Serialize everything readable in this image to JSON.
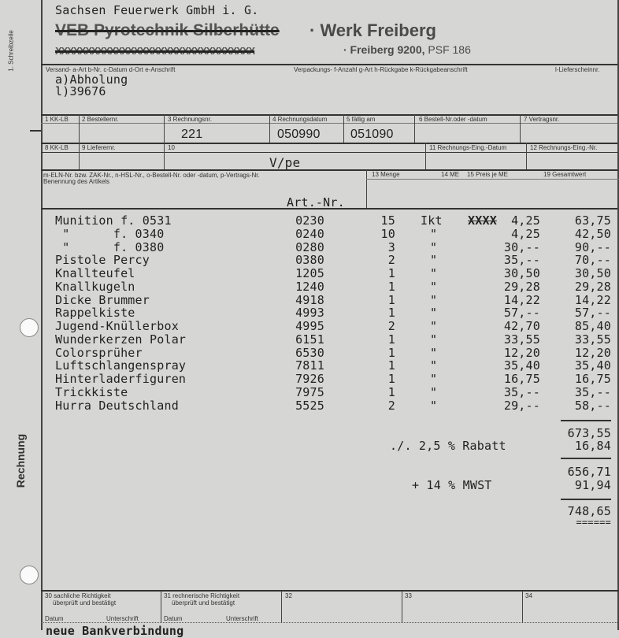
{
  "margin": {
    "schreibzeile": "1. Schreibzeile",
    "doc_type": "Rechnung"
  },
  "letterhead": {
    "company": "Sachsen Feuerwerk GmbH i. G.",
    "old_name_struck": "VEB Pyrotechnik Silberhütte",
    "werk": "· Werk Freiberg",
    "old_address_struck": "XXXXXXXXXXXXXXXXXXXXXXXXXXXXXXXXX",
    "address": "· Freiberg 9200,",
    "psf": "PSF 186"
  },
  "shipping": {
    "label_versand": "Versand- a-Art b-Nr. c-Datum d-Ort e-Anschrift",
    "label_verpackung": "Verpackungs- f-Anzahl g-Art h-Rückgabe k-Rückgabeanschrift",
    "label_lieferschein": "l-Lieferscheinnr.",
    "line_a": "a)Abholung",
    "line_l": "l)39676"
  },
  "fields": {
    "f1": "1 KK-LB",
    "f2": "2 Bestellernr.",
    "f3": "3 Rechnungsnr.",
    "f4": "4 Rechnungsdatum",
    "f5": "5 fällig am",
    "f6": "6 Bestell-Nr.oder -datum",
    "f7": "7 Vertragsnr.",
    "f8": "8 KK-LB",
    "f9": "9 Lieferernr.",
    "f10": "10",
    "f11": "11 Rechnungs-Eing.-Datum",
    "f12": "12 Rechnungs-Eing.-Nr.",
    "rechnungsnr": "221",
    "rechnungsdatum": "050990",
    "faellig": "051090",
    "field10": "V/pe"
  },
  "table_header": {
    "left_line1": "m-ELN-Nr. bzw. ZAK-Nr., n-HSL-Nr., o-Bestell-Nr. oder -datum, p-Vertrags-Nr.",
    "left_line2": "Benennung des Artikels",
    "art_nr": "Art.-Nr.",
    "menge": "13 Menge",
    "me": "14 ME",
    "preis": "15 Preis je ME",
    "gesamt": "19 Gesamtwert"
  },
  "items": [
    {
      "name": "Munition f. 0531",
      "art": "0230",
      "menge": "15",
      "me": "Ikt",
      "preis_struck": "XXXX",
      "preis": "4,25",
      "gesamt": "63,75"
    },
    {
      "name": " \"      f. 0340",
      "art": "0240",
      "menge": "10",
      "me": "\"",
      "preis": "4,25",
      "gesamt": "42,50"
    },
    {
      "name": " \"      f. 0380",
      "art": "0280",
      "menge": "3",
      "me": "\"",
      "preis": "30,--",
      "gesamt": "90,--"
    },
    {
      "name": "Pistole Percy",
      "art": "0380",
      "menge": "2",
      "me": "\"",
      "preis": "35,--",
      "gesamt": "70,--"
    },
    {
      "name": "Knallteufel",
      "art": "1205",
      "menge": "1",
      "me": "\"",
      "preis": "30,50",
      "gesamt": "30,50"
    },
    {
      "name": "Knallkugeln",
      "art": "1240",
      "menge": "1",
      "me": "\"",
      "preis": "29,28",
      "gesamt": "29,28"
    },
    {
      "name": "Dicke Brummer",
      "art": "4918",
      "menge": "1",
      "me": "\"",
      "preis": "14,22",
      "gesamt": "14,22"
    },
    {
      "name": "Rappelkiste",
      "art": "4993",
      "menge": "1",
      "me": "\"",
      "preis": "57,--",
      "gesamt": "57,--"
    },
    {
      "name": "Jugend-Knüllerbox",
      "art": "4995",
      "menge": "2",
      "me": "\"",
      "preis": "42,70",
      "gesamt": "85,40"
    },
    {
      "name": "Wunderkerzen Polar",
      "art": "6151",
      "menge": "1",
      "me": "\"",
      "preis": "33,55",
      "gesamt": "33,55"
    },
    {
      "name": "Colorsprüher",
      "art": "6530",
      "menge": "1",
      "me": "\"",
      "preis": "12,20",
      "gesamt": "12,20"
    },
    {
      "name": "Luftschlangenspray",
      "art": "7811",
      "menge": "1",
      "me": "\"",
      "preis": "35,40",
      "gesamt": "35,40"
    },
    {
      "name": "Hinterladerfiguren",
      "art": "7926",
      "menge": "1",
      "me": "\"",
      "preis": "16,75",
      "gesamt": "16,75"
    },
    {
      "name": "Trickkiste",
      "art": "7975",
      "menge": "1",
      "me": "\"",
      "preis": "35,--",
      "gesamt": "35,--"
    },
    {
      "name": "Hurra Deutschland",
      "art": "5525",
      "menge": "2",
      "me": "\"",
      "preis": "29,--",
      "gesamt": "58,--"
    }
  ],
  "totals": {
    "subtotal": "673,55",
    "rabatt_label": "./. 2,5 % Rabatt",
    "rabatt": "16,84",
    "net": "656,71",
    "mwst_label": "+ 14 % MWST",
    "mwst": "91,94",
    "total": "748,65",
    "total_underline": "======"
  },
  "footer": {
    "f30_1": "30 sachliche Richtigkeit",
    "f30_2": "überprüft und bestätigt",
    "f31_1": "31 rechnerische Richtigkeit",
    "f31_2": "überprüft und bestätigt",
    "datum": "Datum",
    "unterschrift": "Unterschrift",
    "f32": "32",
    "f33": "33",
    "f34": "34",
    "bank": "neue Bankverbindung"
  }
}
